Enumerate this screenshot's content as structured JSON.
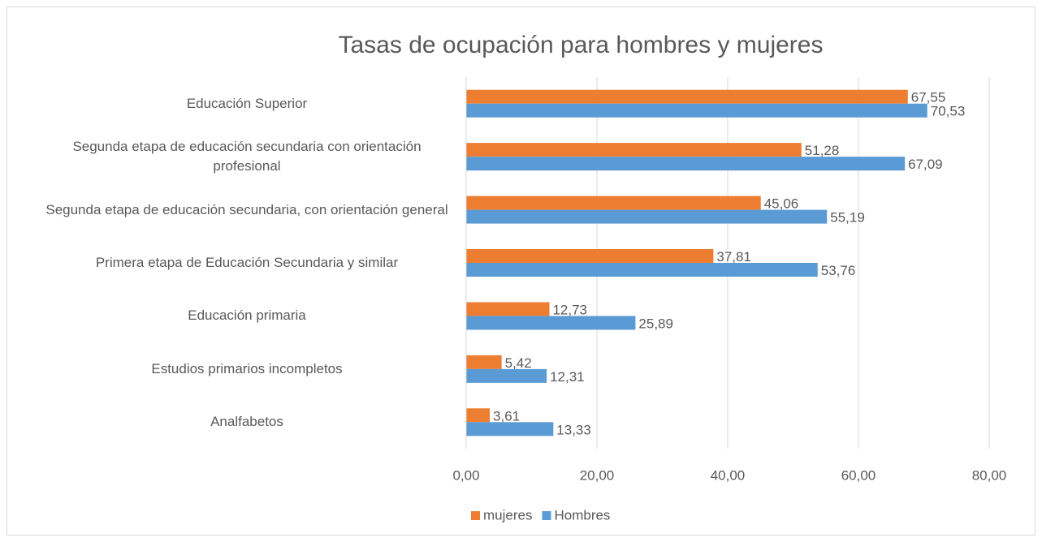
{
  "chart_data": {
    "type": "bar",
    "orientation": "horizontal",
    "title": "Tasas de ocupación para hombres y mujeres",
    "categories": [
      "Educación Superior",
      "Segunda etapa de educación secundaria con orientación profesional",
      "Segunda etapa de educación secundaria, con orientación general",
      "Primera etapa de Educación Secundaria y similar",
      "Educación primaria",
      "Estudios primarios incompletos",
      "Analfabetos"
    ],
    "series": [
      {
        "name": "mujeres",
        "color": "#ed7d31",
        "values": [
          67.55,
          51.28,
          45.06,
          37.81,
          12.73,
          5.42,
          3.61
        ],
        "value_labels": [
          "67,55",
          "51,28",
          "45,06",
          "37,81",
          "12,73",
          "5,42",
          "3,61"
        ]
      },
      {
        "name": "Hombres",
        "color": "#5b9bd5",
        "values": [
          70.53,
          67.09,
          55.19,
          53.76,
          25.89,
          12.31,
          13.33
        ],
        "value_labels": [
          "70,53",
          "67,09",
          "55,19",
          "53,76",
          "25,89",
          "12,31",
          "13,33"
        ]
      }
    ],
    "xlim": [
      0,
      80
    ],
    "xticks": [
      {
        "value": 0,
        "label": "0,00"
      },
      {
        "value": 20,
        "label": "20,00"
      },
      {
        "value": 40,
        "label": "40,00"
      },
      {
        "value": 60,
        "label": "60,00"
      },
      {
        "value": 80,
        "label": "80,00"
      }
    ],
    "grid": true,
    "legend": "bottom"
  }
}
